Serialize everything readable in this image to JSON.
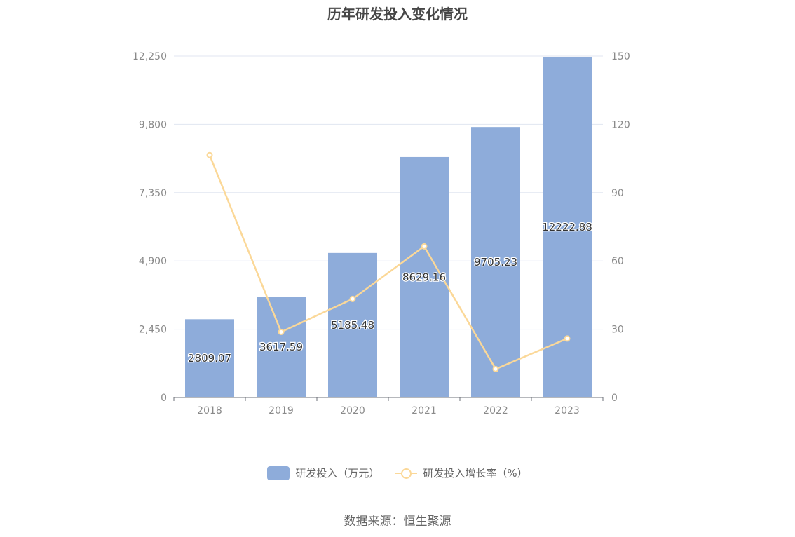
{
  "chart_data": {
    "type": "bar",
    "title": "历年研发投入变化情况",
    "categories": [
      "2018",
      "2019",
      "2020",
      "2021",
      "2022",
      "2023"
    ],
    "series": [
      {
        "name": "研发投入（万元）",
        "type": "bar",
        "axis": "left",
        "color": "#8eacda",
        "values": [
          2809.07,
          3617.59,
          5185.48,
          8629.16,
          9705.23,
          12222.88
        ],
        "labels": [
          "2809.07",
          "3617.59",
          "5185.48",
          "8629.16",
          "9705.23",
          "12222.88"
        ]
      },
      {
        "name": "研发投入增长率（%）",
        "type": "line",
        "axis": "right",
        "color": "#fbd898",
        "values": [
          106.5,
          28.8,
          43.3,
          66.4,
          12.5,
          25.9
        ]
      }
    ],
    "y_left": {
      "min": 0,
      "max": 12250,
      "ticks": [
        "0",
        "2,450",
        "4,900",
        "7,350",
        "9,800",
        "12,250"
      ]
    },
    "y_right": {
      "min": 0,
      "max": 150,
      "ticks": [
        "0",
        "30",
        "60",
        "90",
        "120",
        "150"
      ]
    },
    "grid": true,
    "legend_position": "bottom"
  },
  "footer": {
    "source": "数据来源：恒生聚源"
  }
}
